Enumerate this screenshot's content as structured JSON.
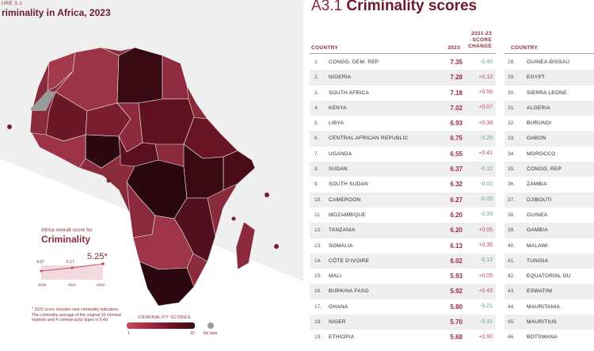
{
  "figure": {
    "label": "URE 3.1",
    "title": "riminality in Africa, 2023",
    "aside_subtitle": "Africa overall score for",
    "aside_title": "Criminality",
    "overall_score": "5.25*",
    "sparkline": {
      "labels": [
        "4.97",
        "5.17"
      ],
      "years": [
        "2019",
        "2021",
        "2023"
      ]
    },
    "note": "* 2023 score includes new criminality indicators. The criminality average of the original 10 criminal markets and 4 criminal actor types is 5.40.",
    "legend": {
      "title": "CRIMINALITY SCORES",
      "min": "1",
      "max": "10",
      "nodata": "No data"
    },
    "colors": {
      "background": "#efefef",
      "land": "#8a2b3b",
      "nodata": "#9a9a9a",
      "accent": "#6d1a2a"
    }
  },
  "table": {
    "code": "A3.1",
    "title": "Criminality scores",
    "headers": {
      "country": "COUNTRY",
      "year": "2023",
      "change": "2021-23 SCORE CHANGE",
      "country2": "COUNTRY"
    },
    "rows": [
      {
        "rank": "1.",
        "country": "CONGO, DEM. REP",
        "score": "7.35",
        "change": "-0.40"
      },
      {
        "rank": "2.",
        "country": "NIGERIA",
        "score": "7.28",
        "change": "+0.13"
      },
      {
        "rank": "3.",
        "country": "SOUTH AFRICA",
        "score": "7.18",
        "change": "+0.56"
      },
      {
        "rank": "4.",
        "country": "KENYA",
        "score": "7.02",
        "change": "+0.07"
      },
      {
        "rank": "5.",
        "country": "LIBYA",
        "score": "6.93",
        "change": "+0.38"
      },
      {
        "rank": "6.",
        "country": "CENTRAL AFRICAN REPUBLIC",
        "score": "6.75",
        "change": "-0.29"
      },
      {
        "rank": "7.",
        "country": "UGANDA",
        "score": "6.55",
        "change": "+0.41"
      },
      {
        "rank": "8.",
        "country": "SUDAN",
        "score": "6.37",
        "change": "-0.10"
      },
      {
        "rank": "9.",
        "country": "SOUTH SUDAN",
        "score": "6.32",
        "change": "-0.02"
      },
      {
        "rank": "10.",
        "country": "CAMEROON",
        "score": "6.27",
        "change": "-0.05"
      },
      {
        "rank": "11.",
        "country": "MOZAMBIQUE",
        "score": "6.20",
        "change": "-0.33"
      },
      {
        "rank": "12.",
        "country": "TANZANIA",
        "score": "6.20",
        "change": "+0.05"
      },
      {
        "rank": "13.",
        "country": "SOMALIA",
        "score": "6.13",
        "change": "+0.35"
      },
      {
        "rank": "14.",
        "country": "CÔTE D'IVOIRE",
        "score": "6.02",
        "change": "-0.13"
      },
      {
        "rank": "15.",
        "country": "MALI",
        "score": "5.93",
        "change": "+0.05"
      },
      {
        "rank": "16.",
        "country": "BURKINA FASO",
        "score": "5.92",
        "change": "+0.43"
      },
      {
        "rank": "17.",
        "country": "GHANA",
        "score": "5.80",
        "change": "-0.21"
      },
      {
        "rank": "18.",
        "country": "NIGER",
        "score": "5.70",
        "change": "-0.31"
      },
      {
        "rank": "19.",
        "country": "ETHIOPIA",
        "score": "5.68",
        "change": "+0.90"
      }
    ],
    "rows2": [
      {
        "rank": "28.",
        "country": "GUINEA-BISSAU"
      },
      {
        "rank": "29.",
        "country": "EGYPT"
      },
      {
        "rank": "30.",
        "country": "SIERRA LEONE"
      },
      {
        "rank": "31.",
        "country": "ALGERIA"
      },
      {
        "rank": "32.",
        "country": "BURUNDI"
      },
      {
        "rank": "33.",
        "country": "GABON"
      },
      {
        "rank": "34.",
        "country": "MOROCCO"
      },
      {
        "rank": "35.",
        "country": "CONGO, REP"
      },
      {
        "rank": "36.",
        "country": "ZAMBIA"
      },
      {
        "rank": "37.",
        "country": "DJIBOUTI"
      },
      {
        "rank": "38.",
        "country": "GUINEA"
      },
      {
        "rank": "39.",
        "country": "GAMBIA"
      },
      {
        "rank": "40.",
        "country": "MALAWI"
      },
      {
        "rank": "41.",
        "country": "TUNISIA"
      },
      {
        "rank": "42.",
        "country": "EQUATORIAL GU"
      },
      {
        "rank": "43.",
        "country": "ESWATINI"
      },
      {
        "rank": "44.",
        "country": "MAURITANIA"
      },
      {
        "rank": "45.",
        "country": "MAURITIUS"
      },
      {
        "rank": "46.",
        "country": "BOTSWANA"
      }
    ]
  }
}
